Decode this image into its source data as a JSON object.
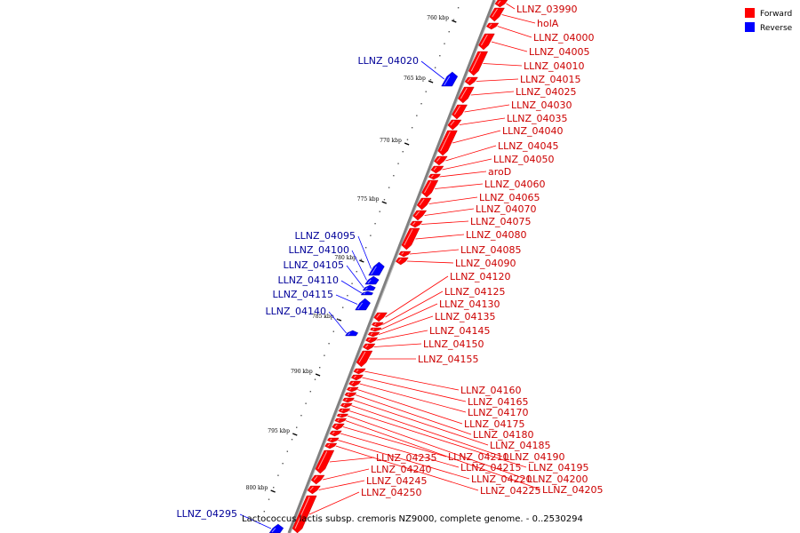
{
  "caption": "Lactococcus lactis subsp. cremoris NZ9000, complete genome. - 0..2530294",
  "legend": [
    {
      "label": "Forward",
      "color": "#ff0000"
    },
    {
      "label": "Reverse",
      "color": "#0000ff"
    }
  ],
  "colors": {
    "forward": "#ff0000",
    "reverse": "#0000ff",
    "backbone": "#808080"
  },
  "ticks": [
    "760 kbp",
    "765 kbp",
    "770 kbp",
    "775 kbp",
    "780 kbp",
    "785 kbp",
    "790 kbp",
    "795 kbp",
    "800 kbp"
  ],
  "forward_genes": [
    "LLNZ_03990",
    "holA",
    "LLNZ_04000",
    "LLNZ_04005",
    "LLNZ_04010",
    "LLNZ_04015",
    "LLNZ_04025",
    "LLNZ_04030",
    "LLNZ_04035",
    "LLNZ_04040",
    "LLNZ_04045",
    "LLNZ_04050",
    "aroD",
    "LLNZ_04060",
    "LLNZ_04065",
    "LLNZ_04070",
    "LLNZ_04075",
    "LLNZ_04080",
    "LLNZ_04085",
    "LLNZ_04090",
    "LLNZ_04120",
    "LLNZ_04125",
    "LLNZ_04130",
    "LLNZ_04135",
    "LLNZ_04145",
    "LLNZ_04150",
    "LLNZ_04155",
    "LLNZ_04160",
    "LLNZ_04165",
    "LLNZ_04170",
    "LLNZ_04175",
    "LLNZ_04180",
    "LLNZ_04185",
    "LLNZ_04190",
    "LLNZ_04195",
    "LLNZ_04200",
    "LLNZ_04205",
    "LLNZ_04210",
    "LLNZ_04215",
    "LLNZ_04220",
    "LLNZ_04225",
    "LLNZ_04235",
    "LLNZ_04240",
    "LLNZ_04245",
    "LLNZ_04250"
  ],
  "reverse_genes": [
    "LLNZ_04020",
    "LLNZ_04095",
    "LLNZ_04100",
    "LLNZ_04105",
    "LLNZ_04110",
    "LLNZ_04115",
    "LLNZ_04140",
    "LLNZ_04295"
  ]
}
